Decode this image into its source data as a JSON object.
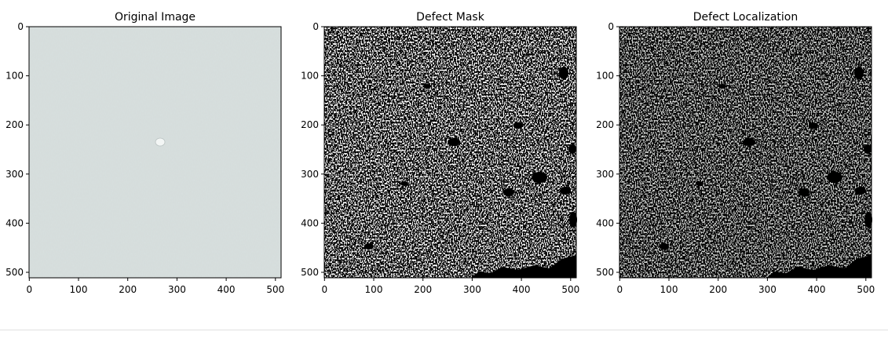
{
  "panels": [
    {
      "title": "Original Image",
      "kind": "original"
    },
    {
      "title": "Defect Mask",
      "kind": "mask"
    },
    {
      "title": "Defect Localization",
      "kind": "localization"
    }
  ],
  "axes": {
    "y_ticks": [
      "0",
      "100",
      "200",
      "300",
      "400",
      "500"
    ],
    "x_ticks": [
      "0",
      "100",
      "200",
      "300",
      "400",
      "500"
    ],
    "data_range": [
      0,
      512
    ]
  },
  "colors": {
    "original_fabric": "#d4dcdb",
    "mask_background": "#000000",
    "mask_foreground": "#ffffff",
    "localization_foreground": "#8e918f"
  }
}
